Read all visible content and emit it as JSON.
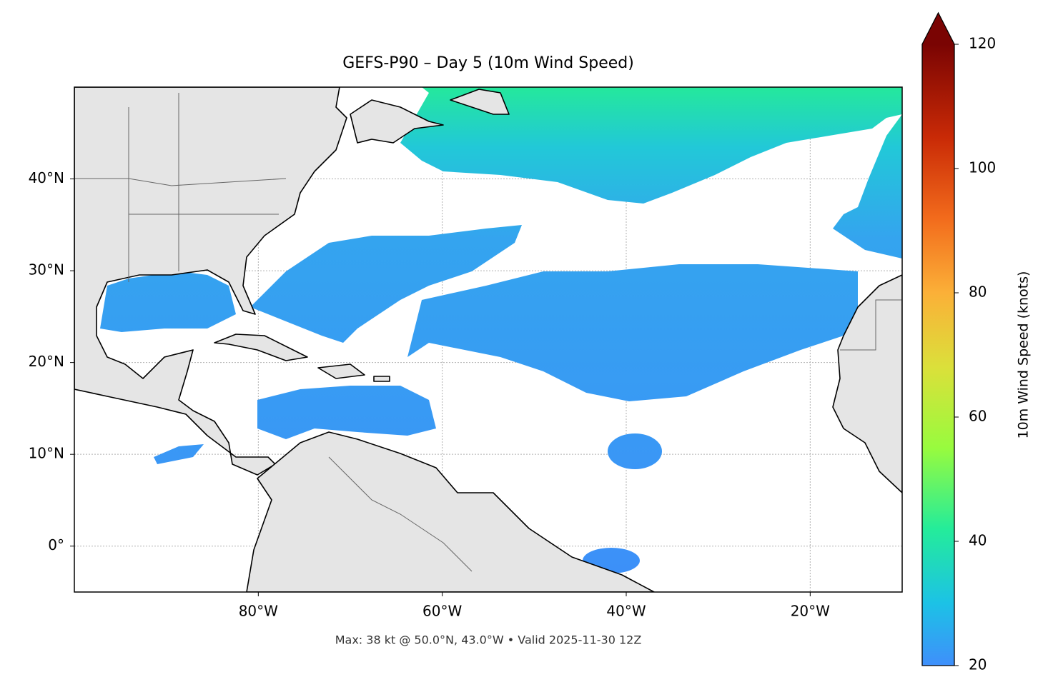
{
  "title": "GEFS-P90 – Day 5 (10m Wind Speed)",
  "footer": "Max: 38 kt @ 50.0°N, 43.0°W • Valid 2025-11-30 12Z",
  "map": {
    "lon_range": [
      -100,
      -10
    ],
    "lat_range": [
      -5,
      50
    ],
    "lon_ticks": [
      {
        "value": -80,
        "label": "80°W"
      },
      {
        "value": -60,
        "label": "60°W"
      },
      {
        "value": -40,
        "label": "40°W"
      },
      {
        "value": -20,
        "label": "20°W"
      }
    ],
    "lat_ticks": [
      {
        "value": 0,
        "label": "0°"
      },
      {
        "value": 10,
        "label": "10°N"
      },
      {
        "value": 20,
        "label": "20°N"
      },
      {
        "value": 30,
        "label": "30°N"
      },
      {
        "value": 40,
        "label": "40°N"
      }
    ]
  },
  "colorbar": {
    "label": "10m Wind Speed (knots)",
    "range": [
      20,
      120
    ],
    "ticks": [
      20,
      40,
      60,
      80,
      100,
      120
    ]
  }
}
